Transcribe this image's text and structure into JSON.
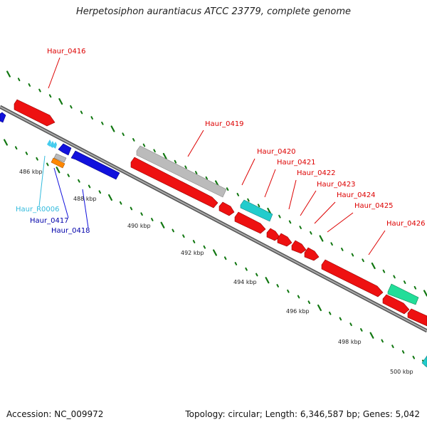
{
  "title": "Herpetosiphon aurantiacus ATCC 23779, complete genome",
  "footer": {
    "accession": "Accession: NC_009972",
    "summary": "Topology: circular; Length: 6,346,587 bp; Genes: 5,042"
  },
  "colors": {
    "gene_red": "#ee1111",
    "gene_blue": "#1111dd",
    "gene_cyan": "#22cccc",
    "gene_grey": "#bbbbbb",
    "gene_green": "#22dd99",
    "gene_orange": "#ff8800",
    "rna_lightblue": "#44ccee",
    "tick_green": "#117711",
    "backbone": "#888888"
  },
  "scale_labels": [
    "486 kbp",
    "488 kbp",
    "490 kbp",
    "492 kbp",
    "494 kbp",
    "496 kbp",
    "498 kbp",
    "500 kbp"
  ],
  "gene_labels": [
    "Haur_0416",
    "Haur_0419",
    "Haur_0420",
    "Haur_0421",
    "Haur_0422",
    "Haur_0423",
    "Haur_0424",
    "Haur_0425",
    "Haur_0426",
    "Haur_R0006",
    "Haur_0417",
    "Haur_0418"
  ]
}
